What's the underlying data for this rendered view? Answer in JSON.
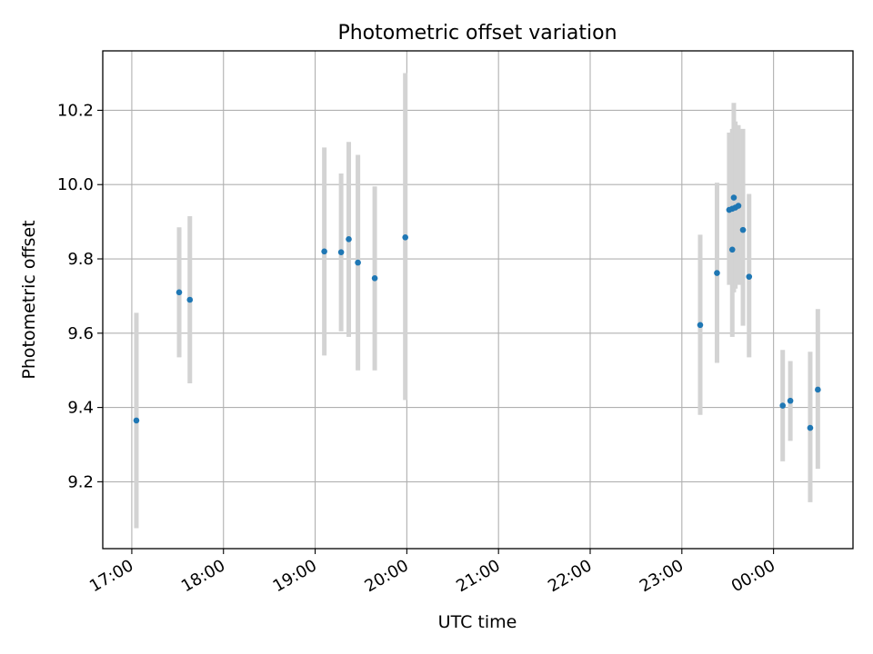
{
  "chart_data": {
    "type": "scatter",
    "title": "Photometric offset variation",
    "xlabel": "UTC time",
    "ylabel": "Photometric offset",
    "x_ticks": [
      "17:00",
      "18:00",
      "19:00",
      "20:00",
      "21:00",
      "22:00",
      "23:00",
      "00:00"
    ],
    "y_ticks": [
      "9.2",
      "9.4",
      "9.6",
      "9.8",
      "10.0",
      "10.2"
    ],
    "xlim": [
      "16:41",
      "00:52"
    ],
    "ylim": [
      9.02,
      10.36
    ],
    "grid": true,
    "colors": {
      "marker": "#1f77b4",
      "error_bar": "#d3d3d3",
      "grid": "#b0b0b0"
    },
    "points": [
      {
        "x": "17:03",
        "y": 9.365,
        "ylow": 9.075,
        "yhigh": 9.655
      },
      {
        "x": "17:31",
        "y": 9.71,
        "ylow": 9.535,
        "yhigh": 9.885
      },
      {
        "x": "17:38",
        "y": 9.69,
        "ylow": 9.465,
        "yhigh": 9.915
      },
      {
        "x": "19:06",
        "y": 9.82,
        "ylow": 9.54,
        "yhigh": 10.1
      },
      {
        "x": "19:17",
        "y": 9.818,
        "ylow": 9.605,
        "yhigh": 10.03
      },
      {
        "x": "19:22",
        "y": 9.853,
        "ylow": 9.59,
        "yhigh": 10.115
      },
      {
        "x": "19:28",
        "y": 9.79,
        "ylow": 9.5,
        "yhigh": 10.08
      },
      {
        "x": "19:39",
        "y": 9.748,
        "ylow": 9.5,
        "yhigh": 9.995
      },
      {
        "x": "19:59",
        "y": 9.858,
        "ylow": 9.42,
        "yhigh": 10.3
      },
      {
        "x": "23:12",
        "y": 9.622,
        "ylow": 9.38,
        "yhigh": 9.865
      },
      {
        "x": "23:23",
        "y": 9.762,
        "ylow": 9.52,
        "yhigh": 10.005
      },
      {
        "x": "23:31",
        "y": 9.932,
        "ylow": 9.73,
        "yhigh": 10.14
      },
      {
        "x": "23:33",
        "y": 9.825,
        "ylow": 9.59,
        "yhigh": 10.06
      },
      {
        "x": "23:33",
        "y": 9.935,
        "ylow": 9.74,
        "yhigh": 10.15
      },
      {
        "x": "23:34",
        "y": 9.965,
        "ylow": 9.71,
        "yhigh": 10.22
      },
      {
        "x": "23:35",
        "y": 9.938,
        "ylow": 9.72,
        "yhigh": 10.17
      },
      {
        "x": "23:37",
        "y": 9.943,
        "ylow": 9.73,
        "yhigh": 10.16
      },
      {
        "x": "23:40",
        "y": 9.878,
        "ylow": 9.62,
        "yhigh": 10.15
      },
      {
        "x": "23:44",
        "y": 9.752,
        "ylow": 9.535,
        "yhigh": 9.975
      },
      {
        "x": "00:06",
        "y": 9.405,
        "ylow": 9.255,
        "yhigh": 9.555
      },
      {
        "x": "00:11",
        "y": 9.418,
        "ylow": 9.31,
        "yhigh": 9.525
      },
      {
        "x": "00:24",
        "y": 9.345,
        "ylow": 9.145,
        "yhigh": 9.55
      },
      {
        "x": "00:29",
        "y": 9.448,
        "ylow": 9.235,
        "yhigh": 9.665
      }
    ]
  }
}
